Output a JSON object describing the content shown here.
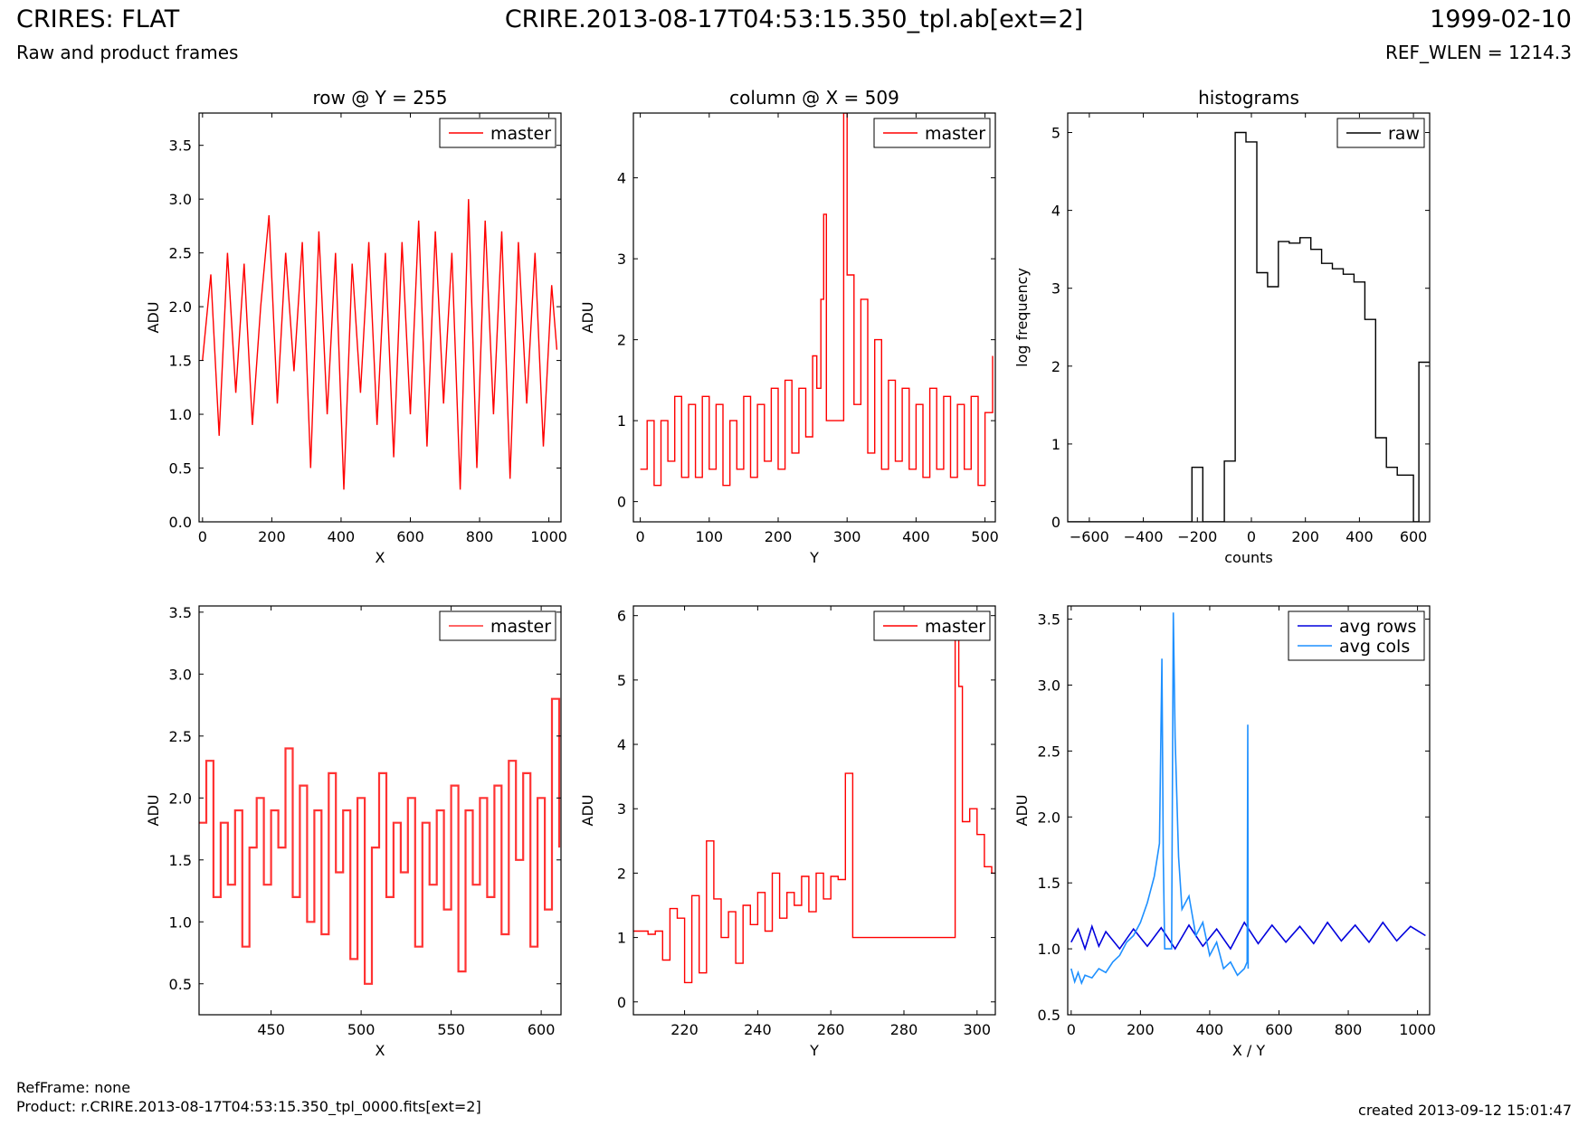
{
  "header": {
    "title_left": "CRIRES: FLAT",
    "title_center": "CRIRE.2013-08-17T04:53:15.350_tpl.ab[ext=2]",
    "title_right": "1999-02-10",
    "subtitle_left": "Raw and product frames",
    "subtitle_right": "REF_WLEN = 1214.3"
  },
  "footer": {
    "refframe": "RefFrame: none",
    "product": "Product: r.CRIRE.2013-08-17T04:53:15.350_tpl_0000.fits[ext=2]",
    "created": "created 2013-09-12 15:01:47"
  },
  "colors": {
    "red": "#ff0000",
    "light_red": "#ff3333",
    "black": "#000000",
    "blue": "#0000dd",
    "light_blue": "#1e90ff"
  },
  "chart_data": [
    {
      "type": "line",
      "title": "row @ Y = 255",
      "xlabel": "X",
      "ylabel": "ADU",
      "xlim": [
        -10,
        1035
      ],
      "ylim": [
        0,
        3.8
      ],
      "xticks": [
        0,
        200,
        400,
        600,
        800,
        1000
      ],
      "yticks": [
        0.0,
        0.5,
        1.0,
        1.5,
        2.0,
        2.5,
        3.0,
        3.5
      ],
      "ytick_labels": [
        "0.0",
        "0.5",
        "1.0",
        "1.5",
        "2.0",
        "2.5",
        "3.0",
        "3.5"
      ],
      "legend": "top-right",
      "series": [
        {
          "name": "master",
          "color": "#ff0000",
          "step": false,
          "width": 1.4,
          "x": [
            0,
            24,
            48,
            72,
            96,
            120,
            144,
            168,
            192,
            216,
            240,
            264,
            288,
            312,
            336,
            360,
            384,
            408,
            432,
            456,
            480,
            504,
            528,
            552,
            576,
            600,
            624,
            648,
            672,
            696,
            720,
            744,
            768,
            792,
            816,
            840,
            864,
            888,
            912,
            936,
            960,
            984,
            1008,
            1023
          ],
          "y": [
            1.5,
            2.3,
            0.8,
            2.5,
            1.2,
            2.4,
            0.9,
            2.0,
            2.85,
            1.1,
            2.5,
            1.4,
            2.6,
            0.5,
            2.7,
            1.0,
            2.5,
            0.3,
            2.4,
            1.2,
            2.6,
            0.9,
            2.5,
            0.6,
            2.6,
            1.0,
            2.8,
            0.7,
            2.7,
            1.1,
            2.5,
            0.3,
            3.0,
            0.5,
            2.8,
            1.0,
            2.7,
            0.4,
            2.6,
            1.1,
            2.5,
            0.7,
            2.2,
            1.6
          ]
        }
      ]
    },
    {
      "type": "line",
      "title": "column @ X = 509",
      "xlabel": "Y",
      "ylabel": "ADU",
      "xlim": [
        -10,
        515
      ],
      "ylim": [
        -0.25,
        4.8
      ],
      "xticks": [
        0,
        100,
        200,
        300,
        400,
        500
      ],
      "yticks": [
        0,
        1,
        2,
        3,
        4
      ],
      "ytick_labels": [
        "0",
        "1",
        "2",
        "3",
        "4"
      ],
      "legend": "top-right",
      "series": [
        {
          "name": "master",
          "color": "#ff0000",
          "step": true,
          "width": 1.4,
          "x": [
            0,
            10,
            20,
            30,
            40,
            50,
            60,
            70,
            80,
            90,
            100,
            110,
            120,
            130,
            140,
            150,
            160,
            170,
            180,
            190,
            200,
            210,
            220,
            230,
            240,
            250,
            256,
            262,
            266,
            270,
            280,
            290,
            295,
            300,
            310,
            320,
            330,
            340,
            350,
            360,
            370,
            380,
            390,
            400,
            410,
            420,
            430,
            440,
            450,
            460,
            470,
            480,
            490,
            500,
            511
          ],
          "y": [
            0.4,
            1.0,
            0.2,
            1.0,
            0.5,
            1.3,
            0.3,
            1.2,
            0.3,
            1.3,
            0.4,
            1.2,
            0.2,
            1.0,
            0.4,
            1.3,
            0.3,
            1.2,
            0.5,
            1.4,
            0.4,
            1.5,
            0.6,
            1.4,
            0.8,
            1.8,
            1.4,
            2.5,
            3.55,
            1.0,
            1.0,
            1.0,
            4.8,
            2.8,
            1.2,
            2.5,
            0.6,
            2.0,
            0.4,
            1.5,
            0.5,
            1.4,
            0.4,
            1.2,
            0.3,
            1.4,
            0.4,
            1.3,
            0.3,
            1.2,
            0.4,
            1.3,
            0.2,
            1.1,
            1.8
          ]
        }
      ]
    },
    {
      "type": "line",
      "title": "histograms",
      "xlabel": "counts",
      "ylabel": "log frequency",
      "xlim": [
        -680,
        660
      ],
      "ylim": [
        0,
        5.25
      ],
      "xticks": [
        -600,
        -400,
        -200,
        0,
        200,
        400,
        600
      ],
      "yticks": [
        0,
        1,
        2,
        3,
        4,
        5
      ],
      "xtick_labels": [
        "−600",
        "−400",
        "−200",
        "0",
        "200",
        "400",
        "600"
      ],
      "ytick_labels": [
        "0",
        "1",
        "2",
        "3",
        "4",
        "5"
      ],
      "legend": "top-right",
      "series": [
        {
          "name": "raw",
          "color": "#000000",
          "step": true,
          "width": 1.4,
          "x": [
            -680,
            -220,
            -180,
            -100,
            -60,
            -20,
            20,
            60,
            100,
            140,
            180,
            220,
            260,
            300,
            340,
            380,
            420,
            460,
            500,
            540,
            600,
            620,
            660
          ],
          "y": [
            0,
            0.7,
            0,
            0.78,
            5.0,
            4.88,
            3.2,
            3.02,
            3.6,
            3.58,
            3.65,
            3.5,
            3.32,
            3.25,
            3.18,
            3.08,
            2.6,
            1.08,
            0.7,
            0.6,
            0,
            2.05,
            2.05
          ]
        }
      ]
    },
    {
      "type": "line",
      "title": "",
      "xlabel": "X",
      "ylabel": "ADU",
      "xlim": [
        410,
        611
      ],
      "ylim": [
        0.25,
        3.55
      ],
      "xticks": [
        450,
        500,
        550,
        600
      ],
      "yticks": [
        0.5,
        1.0,
        1.5,
        2.0,
        2.5,
        3.0,
        3.5
      ],
      "ytick_labels": [
        "0.5",
        "1.0",
        "1.5",
        "2.0",
        "2.5",
        "3.0",
        "3.5"
      ],
      "legend": "top-right",
      "series": [
        {
          "name": "master",
          "color": "#ff3333",
          "step": true,
          "width": 2.2,
          "x": [
            410,
            414,
            418,
            422,
            426,
            430,
            434,
            438,
            442,
            446,
            450,
            454,
            458,
            462,
            466,
            470,
            474,
            478,
            482,
            486,
            490,
            494,
            498,
            502,
            506,
            510,
            514,
            518,
            522,
            526,
            530,
            534,
            538,
            542,
            546,
            550,
            554,
            558,
            562,
            566,
            570,
            574,
            578,
            582,
            586,
            590,
            594,
            598,
            602,
            606,
            610
          ],
          "y": [
            1.8,
            2.3,
            1.2,
            1.8,
            1.3,
            1.9,
            0.8,
            1.6,
            2.0,
            1.3,
            1.9,
            1.6,
            2.4,
            1.2,
            2.1,
            1.0,
            1.9,
            0.9,
            2.2,
            1.4,
            1.9,
            0.7,
            2.0,
            0.5,
            1.6,
            2.2,
            1.2,
            1.8,
            1.4,
            2.0,
            0.8,
            1.8,
            1.3,
            1.9,
            1.1,
            2.1,
            0.6,
            1.9,
            1.3,
            2.0,
            1.2,
            2.1,
            0.9,
            2.3,
            1.5,
            2.2,
            0.8,
            2.0,
            1.1,
            2.8,
            1.6
          ]
        }
      ]
    },
    {
      "type": "line",
      "title": "",
      "xlabel": "Y",
      "ylabel": "ADU",
      "xlim": [
        206,
        305
      ],
      "ylim": [
        -0.2,
        6.15
      ],
      "xticks": [
        220,
        240,
        260,
        280,
        300
      ],
      "yticks": [
        0,
        1,
        2,
        3,
        4,
        5,
        6
      ],
      "ytick_labels": [
        "0",
        "1",
        "2",
        "3",
        "4",
        "5",
        "6"
      ],
      "legend": "top-right",
      "series": [
        {
          "name": "master",
          "color": "#ff0000",
          "step": true,
          "width": 1.4,
          "x": [
            206,
            210,
            212,
            214,
            216,
            218,
            220,
            222,
            224,
            226,
            228,
            230,
            232,
            234,
            236,
            238,
            240,
            242,
            244,
            246,
            248,
            250,
            252,
            254,
            256,
            258,
            260,
            262,
            264,
            266,
            270,
            280,
            290,
            294,
            295,
            296,
            298,
            300,
            302,
            304,
            305
          ],
          "y": [
            1.1,
            1.05,
            1.1,
            0.65,
            1.45,
            1.3,
            0.3,
            1.65,
            0.45,
            2.5,
            1.6,
            1.0,
            1.4,
            0.6,
            1.5,
            1.2,
            1.7,
            1.1,
            2.0,
            1.3,
            1.7,
            1.5,
            1.95,
            1.4,
            2.0,
            1.6,
            1.95,
            1.9,
            3.55,
            1.0,
            1.0,
            1.0,
            1.0,
            6.0,
            4.9,
            2.8,
            3.0,
            2.6,
            2.1,
            2.0,
            2.0
          ]
        }
      ]
    },
    {
      "type": "line",
      "title": "",
      "xlabel": "X / Y",
      "ylabel": "ADU",
      "xlim": [
        -10,
        1035
      ],
      "ylim": [
        0.5,
        3.6
      ],
      "xticks": [
        0,
        200,
        400,
        600,
        800,
        1000
      ],
      "yticks": [
        0.5,
        1.0,
        1.5,
        2.0,
        2.5,
        3.0,
        3.5
      ],
      "ytick_labels": [
        "0.5",
        "1.0",
        "1.5",
        "2.0",
        "2.5",
        "3.0",
        "3.5"
      ],
      "legend": "top-right",
      "series": [
        {
          "name": "avg rows",
          "color": "#0000dd",
          "step": false,
          "width": 1.6,
          "x": [
            0,
            20,
            40,
            60,
            80,
            100,
            140,
            180,
            220,
            260,
            300,
            340,
            380,
            420,
            460,
            500,
            540,
            580,
            620,
            660,
            700,
            740,
            780,
            820,
            860,
            900,
            940,
            980,
            1023
          ],
          "y": [
            1.05,
            1.15,
            1.0,
            1.17,
            1.02,
            1.13,
            1.0,
            1.15,
            1.02,
            1.16,
            1.0,
            1.18,
            1.02,
            1.15,
            1.0,
            1.2,
            1.04,
            1.18,
            1.05,
            1.17,
            1.04,
            1.2,
            1.06,
            1.18,
            1.05,
            1.2,
            1.06,
            1.17,
            1.1
          ]
        },
        {
          "name": "avg cols",
          "color": "#1e90ff",
          "step": false,
          "width": 1.6,
          "x": [
            0,
            10,
            20,
            30,
            40,
            60,
            80,
            100,
            120,
            140,
            160,
            180,
            200,
            220,
            240,
            255,
            262,
            266,
            270,
            280,
            290,
            295,
            300,
            310,
            320,
            340,
            360,
            380,
            400,
            420,
            440,
            460,
            480,
            500,
            508,
            510,
            511
          ],
          "y": [
            0.85,
            0.75,
            0.82,
            0.74,
            0.8,
            0.78,
            0.85,
            0.82,
            0.9,
            0.95,
            1.05,
            1.1,
            1.2,
            1.35,
            1.55,
            1.8,
            3.2,
            1.7,
            1.0,
            1.0,
            1.0,
            3.55,
            2.6,
            1.7,
            1.3,
            1.4,
            1.1,
            1.2,
            0.95,
            1.05,
            0.85,
            0.9,
            0.8,
            0.85,
            0.9,
            2.7,
            0.85
          ]
        }
      ]
    }
  ]
}
